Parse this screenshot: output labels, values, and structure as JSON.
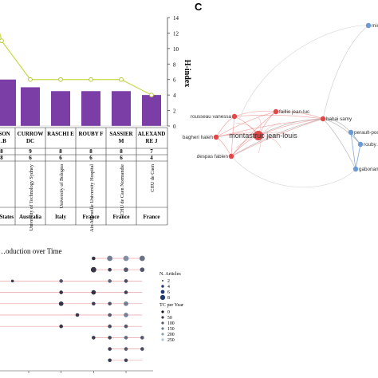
{
  "panel_label": "C",
  "chart_data": [
    {
      "type": "bar",
      "ylabel": "H-index",
      "ylim": [
        0,
        14
      ],
      "yticks": [
        0,
        2,
        4,
        6,
        8,
        10,
        12,
        14
      ],
      "categories": [
        "…SON\n…B",
        "CURROW\nDC",
        "RASCHI E",
        "ROUBY F",
        "SASSIER\nM",
        "ALEXAND\nRE J"
      ],
      "series": [
        {
          "values": [
            6.0,
            5.0,
            4.5,
            4.5,
            4.5,
            4.0
          ]
        },
        {
          "values": [
            11.0,
            6.0,
            6.0,
            6.0,
            6.0,
            4.0
          ]
        }
      ],
      "table_rows": [
        [
          "8",
          "9",
          "8",
          "8",
          "8",
          "7"
        ],
        [
          "8",
          "6",
          "6",
          "6",
          "6",
          "4"
        ]
      ],
      "affiliations": [
        "",
        "University of Technology Sydney",
        "University of Bologna",
        "Aix-Marseille University Hospital",
        "CHU de Caen Normandie",
        "CHU de Caen"
      ],
      "countries": [
        "…d States",
        "Australia",
        "Italy",
        "France",
        "France",
        "France"
      ]
    },
    {
      "type": "scatter",
      "title": "…oduction over Time",
      "x_ticks": [
        "2014",
        "2016",
        "2018",
        "2020"
      ],
      "xlim": [
        2010,
        2022
      ],
      "legend": {
        "size_title": "N. Articles",
        "size_entries": [
          "2",
          "4",
          "6",
          "8"
        ],
        "color_title": "TC per Year",
        "color_entries": [
          "0",
          "50",
          "100",
          "150",
          "200",
          "250"
        ]
      },
      "rows": [
        {
          "start": 2018,
          "end": 2021,
          "points": [
            [
              2018,
              2,
              0
            ],
            [
              2019,
              4,
              120
            ],
            [
              2020,
              4,
              150
            ],
            [
              2021,
              4,
              100
            ]
          ]
        },
        {
          "start": 2018,
          "end": 2021,
          "points": [
            [
              2018,
              4,
              0
            ],
            [
              2019,
              2,
              20
            ],
            [
              2020,
              3,
              60
            ],
            [
              2021,
              3,
              60
            ]
          ]
        },
        {
          "start": 2010,
          "end": 2021,
          "points": [
            [
              2013,
              1,
              10
            ],
            [
              2016,
              2,
              60
            ],
            [
              2019,
              2,
              80
            ],
            [
              2020,
              2,
              40
            ]
          ]
        },
        {
          "start": 2010,
          "end": 2021,
          "points": [
            [
              2016,
              2,
              0
            ],
            [
              2018,
              3,
              0
            ],
            [
              2020,
              2,
              30
            ]
          ]
        },
        {
          "start": 2010,
          "end": 2021,
          "points": [
            [
              2016,
              3,
              0
            ],
            [
              2018,
              2,
              20
            ],
            [
              2019,
              2,
              50
            ],
            [
              2020,
              3,
              120
            ]
          ]
        },
        {
          "start": 2010,
          "end": 2021,
          "points": [
            [
              2017,
              2,
              10
            ],
            [
              2019,
              2,
              60
            ],
            [
              2020,
              3,
              130
            ]
          ]
        },
        {
          "start": 2010,
          "end": 2021,
          "points": [
            [
              2016,
              2,
              0
            ],
            [
              2019,
              2,
              40
            ],
            [
              2020,
              2,
              60
            ]
          ]
        },
        {
          "start": 2018,
          "end": 2021,
          "points": [
            [
              2018,
              2,
              10
            ],
            [
              2019,
              2,
              30
            ],
            [
              2020,
              2,
              90
            ],
            [
              2021,
              2,
              60
            ]
          ]
        },
        {
          "start": 2019,
          "end": 2021,
          "points": [
            [
              2019,
              2,
              20
            ],
            [
              2020,
              2,
              60
            ],
            [
              2021,
              2,
              40
            ]
          ]
        },
        {
          "start": 2019,
          "end": 2021,
          "points": [
            [
              2019,
              2,
              10
            ],
            [
              2020,
              2,
              30
            ]
          ]
        }
      ]
    },
    {
      "type": "network",
      "nodes": [
        {
          "label": "montastruc jean-louis",
          "cluster": "red",
          "size": "large"
        },
        {
          "label": "faillie jean-luc",
          "cluster": "red",
          "size": "small"
        },
        {
          "label": "rousseau vanessa",
          "cluster": "red",
          "size": "small"
        },
        {
          "label": "bagheri haleh",
          "cluster": "red",
          "size": "small"
        },
        {
          "label": "despas fabien",
          "cluster": "red",
          "size": "small"
        },
        {
          "label": "babai samy",
          "cluster": "red",
          "size": "small"
        },
        {
          "label": "perault-poch…",
          "cluster": "blue",
          "size": "small"
        },
        {
          "label": "rouby…",
          "cluster": "blue",
          "size": "small"
        },
        {
          "label": "gaborian…",
          "cluster": "blue",
          "size": "small"
        },
        {
          "label": "mich…",
          "cluster": "blue",
          "size": "small"
        }
      ]
    }
  ]
}
